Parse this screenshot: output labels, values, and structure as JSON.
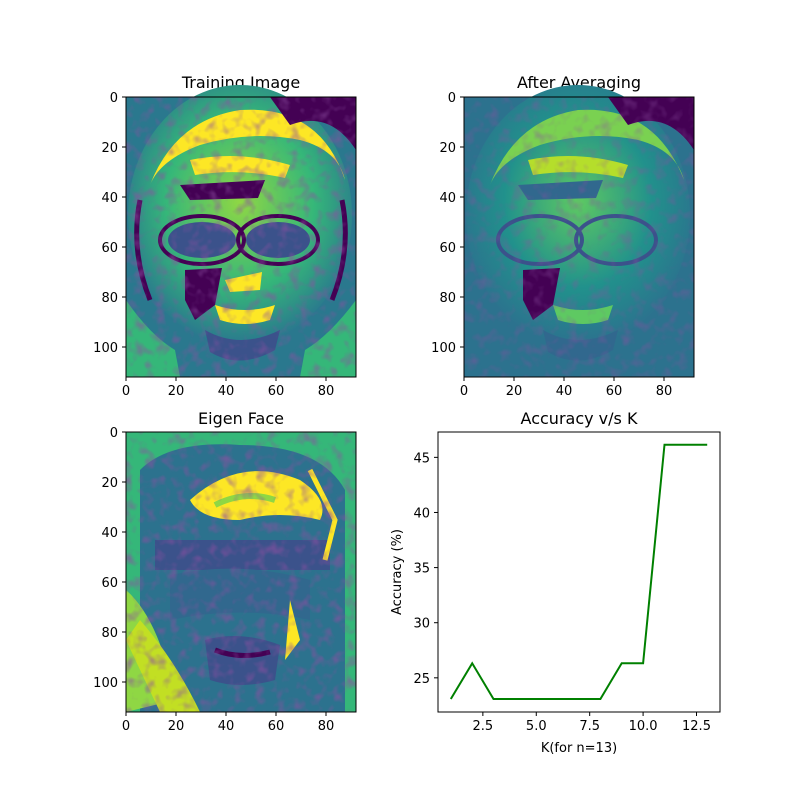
{
  "chart_data": [
    {
      "type": "heatmap",
      "title": "Training Image",
      "xlim": [
        0,
        92
      ],
      "ylim": [
        112,
        0
      ],
      "x_ticks": [
        "0",
        "20",
        "40",
        "60",
        "80"
      ],
      "y_ticks": [
        "0",
        "20",
        "40",
        "60",
        "80",
        "100"
      ],
      "colormap": "viridis"
    },
    {
      "type": "heatmap",
      "title": "After Averaging",
      "xlim": [
        0,
        92
      ],
      "ylim": [
        112,
        0
      ],
      "x_ticks": [
        "0",
        "20",
        "40",
        "60",
        "80"
      ],
      "y_ticks": [
        "0",
        "20",
        "40",
        "60",
        "80",
        "100"
      ],
      "colormap": "viridis"
    },
    {
      "type": "heatmap",
      "title": "Eigen Face",
      "xlim": [
        0,
        92
      ],
      "ylim": [
        112,
        0
      ],
      "x_ticks": [
        "0",
        "20",
        "40",
        "60",
        "80"
      ],
      "y_ticks": [
        "0",
        "20",
        "40",
        "60",
        "80",
        "100"
      ],
      "colormap": "viridis"
    },
    {
      "type": "line",
      "title": "Accuracy v/s K",
      "xlabel": "K(for n=13)",
      "ylabel": "Accuracy (%)",
      "x": [
        1,
        2,
        3,
        4,
        5,
        6,
        7,
        8,
        9,
        10,
        11,
        12,
        13
      ],
      "series": [
        {
          "color": "#008000",
          "values": [
            23.08,
            26.32,
            23.08,
            23.08,
            23.08,
            23.08,
            23.08,
            23.08,
            26.32,
            26.32,
            46.15,
            46.15,
            46.15
          ]
        }
      ],
      "xlim": [
        0.4,
        13.6
      ],
      "ylim": [
        21.9,
        47.3
      ],
      "x_ticks": [
        "2.5",
        "5.0",
        "7.5",
        "10.0",
        "12.5"
      ],
      "y_ticks": [
        "25",
        "30",
        "35",
        "40",
        "45"
      ],
      "grid": false
    }
  ]
}
